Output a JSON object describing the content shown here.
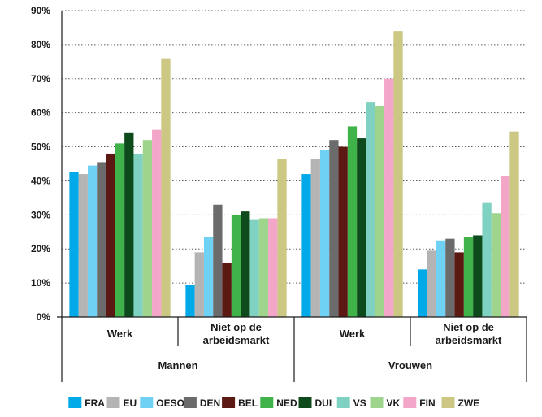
{
  "chart_data": {
    "type": "bar",
    "ylim": [
      0,
      90
    ],
    "y_ticks": [
      "0%",
      "10%",
      "20%",
      "30%",
      "40%",
      "50%",
      "60%",
      "70%",
      "80%",
      "90%"
    ],
    "grid": "dotted horizontal",
    "legend_position": "bottom",
    "categories": [
      {
        "label": "Werk",
        "group": "Mannen"
      },
      {
        "label": "Niet op de\narbeidsmarkt",
        "group": "Mannen"
      },
      {
        "label": "Werk",
        "group": "Vrouwen"
      },
      {
        "label": "Niet op de\narbeidsmarkt",
        "group": "Vrouwen"
      }
    ],
    "groups": [
      "Mannen",
      "Vrouwen"
    ],
    "series": [
      {
        "name": "FRA",
        "color": "#00a9e8",
        "values": [
          42.5,
          9.5,
          42,
          14
        ]
      },
      {
        "name": "EU",
        "color": "#b4b4b4",
        "values": [
          42,
          19,
          46.5,
          19.5
        ]
      },
      {
        "name": "OESO",
        "color": "#6fd2f4",
        "values": [
          44.5,
          23.5,
          49,
          22.5
        ]
      },
      {
        "name": "DEN",
        "color": "#6b6b6b",
        "values": [
          45.5,
          33,
          52,
          23
        ]
      },
      {
        "name": "BEL",
        "color": "#5c1812",
        "values": [
          48,
          16,
          50,
          19
        ]
      },
      {
        "name": "NED",
        "color": "#3fb24a",
        "values": [
          51,
          30,
          56,
          23.5
        ]
      },
      {
        "name": "DUI",
        "color": "#0d4a1c",
        "values": [
          54,
          31,
          52.5,
          24
        ]
      },
      {
        "name": "VS",
        "color": "#7fd2c2",
        "values": [
          48,
          28.5,
          63,
          33.5
        ]
      },
      {
        "name": "VK",
        "color": "#9fd48c",
        "values": [
          52,
          29,
          62,
          30.5
        ]
      },
      {
        "name": "FIN",
        "color": "#f3a6c8",
        "values": [
          55,
          29,
          70,
          41.5
        ]
      },
      {
        "name": "ZWE",
        "color": "#cdc784",
        "values": [
          76,
          46.5,
          84,
          54.5
        ]
      }
    ]
  }
}
